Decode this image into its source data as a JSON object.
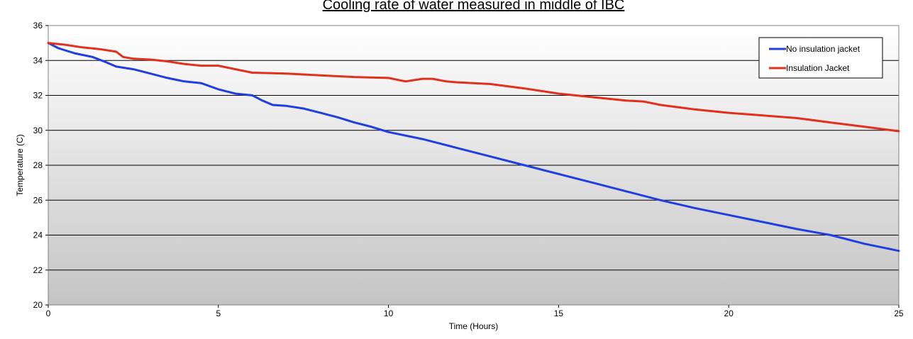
{
  "chart_data": {
    "type": "line",
    "title": "Cooling rate of water measured in middle of IBC",
    "xlabel": "Time (Hours)",
    "ylabel": "Temperature (C)",
    "xlim": [
      0,
      25
    ],
    "ylim": [
      20,
      36
    ],
    "x_ticks": [
      "0",
      "5",
      "10",
      "15",
      "20",
      "25"
    ],
    "y_ticks": [
      "20",
      "22",
      "24",
      "26",
      "28",
      "30",
      "32",
      "34",
      "36"
    ],
    "grid": "horizontal",
    "legend_position": "top-right",
    "background": "vertical gradient white to gray",
    "series": [
      {
        "name": "No insulation jacket",
        "color": "#1f3fe0",
        "x": [
          0,
          0.3,
          0.8,
          1.3,
          1.7,
          2.0,
          2.5,
          3.0,
          3.5,
          4.0,
          4.5,
          5.0,
          5.5,
          6.0,
          6.3,
          6.6,
          7.0,
          7.5,
          8.0,
          8.5,
          9.0,
          9.5,
          10.0,
          11.0,
          12.0,
          13.0,
          14.0,
          15.0,
          16.0,
          17.0,
          18.0,
          19.0,
          20.0,
          21.0,
          22.0,
          23.0,
          24.0,
          25.0
        ],
        "values": [
          35.0,
          34.7,
          34.4,
          34.2,
          33.9,
          33.65,
          33.5,
          33.25,
          33.0,
          32.8,
          32.7,
          32.35,
          32.1,
          32.0,
          31.7,
          31.45,
          31.4,
          31.25,
          31.0,
          30.75,
          30.45,
          30.2,
          29.9,
          29.5,
          29.0,
          28.5,
          28.0,
          27.5,
          27.0,
          26.5,
          26.0,
          25.55,
          25.15,
          24.75,
          24.35,
          24.0,
          23.5,
          23.1
        ]
      },
      {
        "name": "Insulation Jacket",
        "color": "#e0301e",
        "x": [
          0,
          0.5,
          1.0,
          1.5,
          2.0,
          2.2,
          2.5,
          3.0,
          3.5,
          4.0,
          4.5,
          5.0,
          5.5,
          6.0,
          7.0,
          8.0,
          9.0,
          10.0,
          10.5,
          11.0,
          11.3,
          11.7,
          12.0,
          13.0,
          14.0,
          15.0,
          16.0,
          17.0,
          17.5,
          18.0,
          19.0,
          20.0,
          21.0,
          22.0,
          23.0,
          24.0,
          25.0
        ],
        "values": [
          35.0,
          34.9,
          34.75,
          34.65,
          34.5,
          34.2,
          34.1,
          34.05,
          33.95,
          33.8,
          33.7,
          33.7,
          33.5,
          33.3,
          33.25,
          33.15,
          33.05,
          33.0,
          32.8,
          32.95,
          32.95,
          32.8,
          32.75,
          32.65,
          32.4,
          32.1,
          31.9,
          31.7,
          31.65,
          31.45,
          31.2,
          31.0,
          30.85,
          30.7,
          30.45,
          30.2,
          29.95
        ]
      }
    ]
  }
}
